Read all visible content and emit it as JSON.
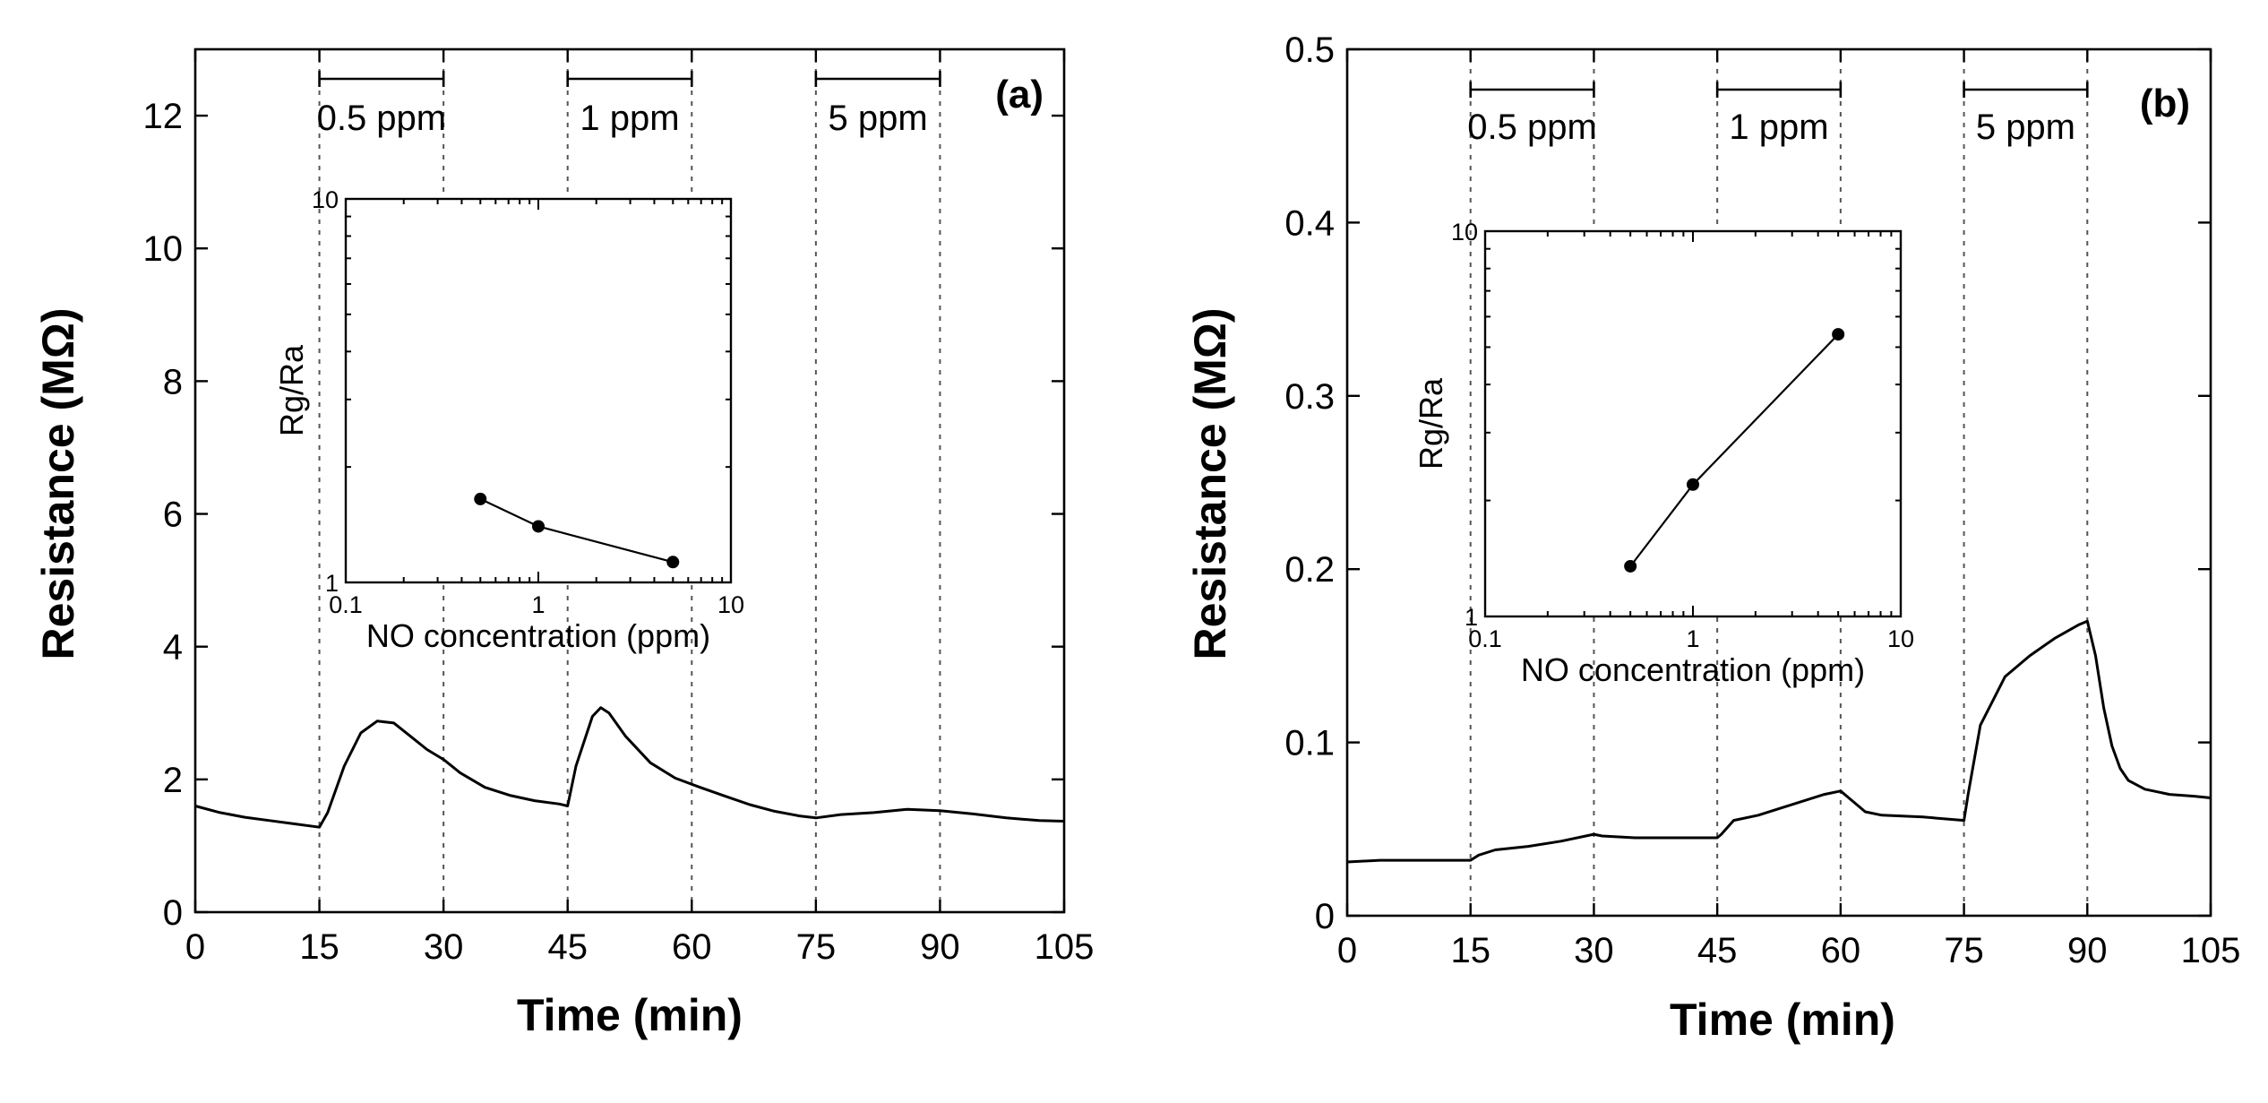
{
  "chart_data": [
    {
      "panel": "(a)",
      "type": "line",
      "xlabel": "Time (min)",
      "ylabel": "Resistance (MΩ)",
      "xlim": [
        0,
        105
      ],
      "ylim": [
        0,
        13
      ],
      "xticks": [
        0,
        15,
        30,
        45,
        60,
        75,
        90,
        105
      ],
      "yticks": [
        0,
        2,
        4,
        6,
        8,
        10,
        12
      ],
      "x_tick_labels": [
        "0",
        "15",
        "30",
        "45",
        "60",
        "75",
        "90",
        "105"
      ],
      "y_tick_labels": [
        "0",
        "2",
        "4",
        "6",
        "8",
        "10",
        "12"
      ],
      "exposures": [
        {
          "label": "0.5 ppm",
          "start": 15,
          "end": 30
        },
        {
          "label": "1 ppm",
          "start": 45,
          "end": 60
        },
        {
          "label": "5 ppm",
          "start": 75,
          "end": 90
        }
      ],
      "series": [
        {
          "name": "Resistance",
          "x": [
            0,
            3,
            6,
            9,
            12,
            15,
            16,
            18,
            20,
            22,
            24,
            26,
            28,
            30,
            32,
            35,
            38,
            41,
            44,
            45,
            46,
            48,
            49,
            50,
            52,
            55,
            58,
            61,
            64,
            67,
            70,
            73,
            75,
            78,
            82,
            86,
            90,
            94,
            98,
            102,
            105
          ],
          "values": [
            1.6,
            1.5,
            1.43,
            1.38,
            1.33,
            1.28,
            1.5,
            2.2,
            2.7,
            2.88,
            2.85,
            2.65,
            2.45,
            2.3,
            2.1,
            1.88,
            1.76,
            1.68,
            1.63,
            1.6,
            2.2,
            2.95,
            3.08,
            3.0,
            2.65,
            2.25,
            2.02,
            1.88,
            1.75,
            1.62,
            1.52,
            1.45,
            1.42,
            1.47,
            1.5,
            1.55,
            1.53,
            1.48,
            1.42,
            1.38,
            1.37
          ]
        }
      ],
      "inset": {
        "type": "line",
        "xscale": "log",
        "yscale": "log",
        "xlabel": "NO concentration (ppm)",
        "ylabel": "Rg/Ra",
        "xlim": [
          0.1,
          10
        ],
        "ylim": [
          1,
          10
        ],
        "x_tick_labels": [
          "0.1",
          "1",
          "10"
        ],
        "y_tick_labels": [
          "1",
          "10"
        ],
        "x": [
          0.5,
          1,
          5
        ],
        "values": [
          1.65,
          1.4,
          1.13
        ]
      }
    },
    {
      "panel": "(b)",
      "type": "line",
      "xlabel": "Time (min)",
      "ylabel": "Resistance (MΩ)",
      "xlim": [
        0,
        105
      ],
      "ylim": [
        0,
        0.5
      ],
      "xticks": [
        0,
        15,
        30,
        45,
        60,
        75,
        90,
        105
      ],
      "yticks": [
        0,
        0.1,
        0.2,
        0.3,
        0.4,
        0.5
      ],
      "x_tick_labels": [
        "0",
        "15",
        "30",
        "45",
        "60",
        "75",
        "90",
        "105"
      ],
      "y_tick_labels": [
        "0",
        "0.1",
        "0.2",
        "0.3",
        "0.4",
        "0.5"
      ],
      "exposures": [
        {
          "label": "0.5 ppm",
          "start": 15,
          "end": 30
        },
        {
          "label": "1 ppm",
          "start": 45,
          "end": 60
        },
        {
          "label": "5 ppm",
          "start": 75,
          "end": 90
        }
      ],
      "series": [
        {
          "name": "Resistance",
          "x": [
            0,
            4,
            8,
            12,
            15,
            16,
            18,
            22,
            26,
            30,
            31,
            35,
            40,
            45,
            45.5,
            47,
            50,
            54,
            58,
            60,
            61,
            63,
            65,
            70,
            75,
            75.5,
            77,
            80,
            83,
            86,
            89,
            90,
            91,
            92,
            93,
            94,
            95,
            97,
            100,
            103,
            105
          ],
          "values": [
            0.031,
            0.032,
            0.032,
            0.032,
            0.032,
            0.035,
            0.038,
            0.04,
            0.043,
            0.047,
            0.046,
            0.045,
            0.045,
            0.045,
            0.047,
            0.055,
            0.058,
            0.064,
            0.07,
            0.072,
            0.068,
            0.06,
            0.058,
            0.057,
            0.055,
            0.07,
            0.11,
            0.138,
            0.15,
            0.16,
            0.168,
            0.17,
            0.15,
            0.12,
            0.098,
            0.085,
            0.078,
            0.073,
            0.07,
            0.069,
            0.068
          ]
        }
      ],
      "inset": {
        "type": "line",
        "xscale": "log",
        "yscale": "log",
        "xlabel": "NO concentration (ppm)",
        "ylabel": "Rg/Ra",
        "xlim": [
          0.1,
          10
        ],
        "ylim": [
          1,
          10
        ],
        "x_tick_labels": [
          "0.1",
          "1",
          "10"
        ],
        "y_tick_labels": [
          "1",
          "10"
        ],
        "x": [
          0.5,
          1,
          5
        ],
        "values": [
          1.35,
          2.2,
          5.4
        ]
      }
    }
  ]
}
